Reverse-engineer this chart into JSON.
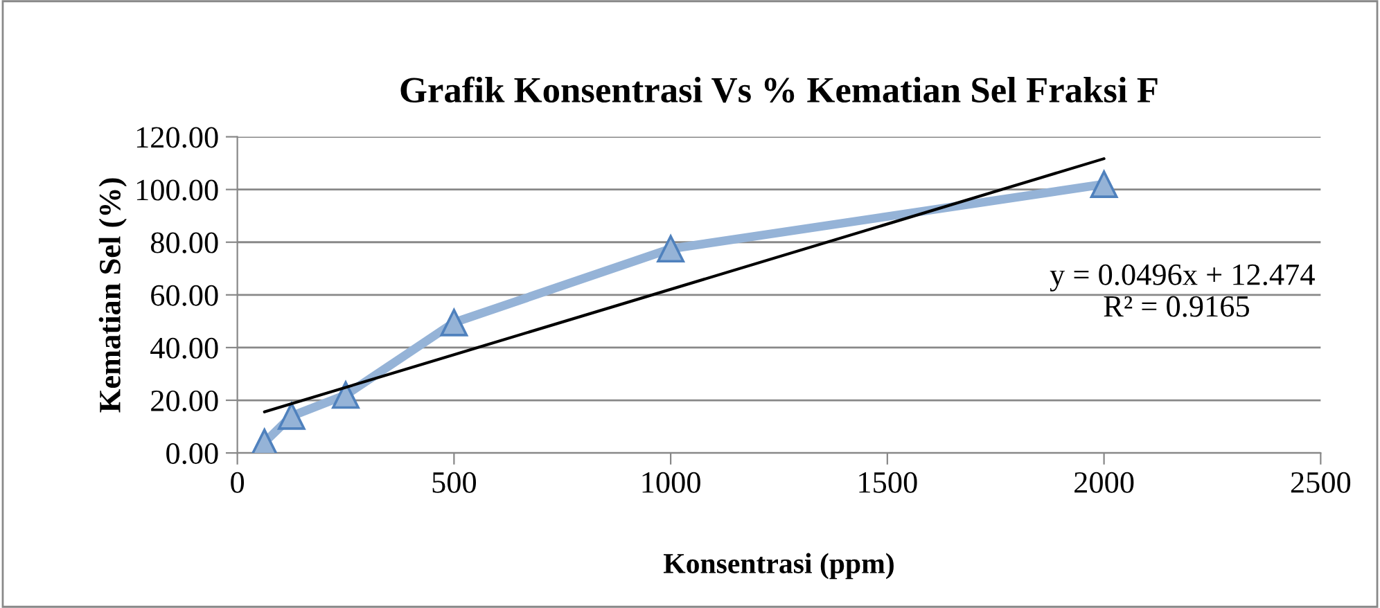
{
  "chart_data": {
    "type": "line",
    "title": "Grafik Konsentrasi Vs % Kematian Sel Fraksi F",
    "xlabel": "Konsentrasi (ppm)",
    "ylabel": "Kematian Sel (%)",
    "x": [
      62.5,
      125,
      250,
      500,
      1000,
      2000
    ],
    "series": [
      {
        "color": "#95b3d7",
        "marker": "triangle",
        "values": [
          4,
          14,
          22,
          49.5,
          77.5,
          102
        ]
      },
      {
        "type": "line",
        "color": "#000000",
        "marker": "none",
        "x": [
          62.5,
          2000
        ],
        "values": [
          15.6,
          111.7
        ]
      }
    ],
    "xlim": [
      0,
      2500
    ],
    "xticks": [
      0,
      500,
      1000,
      1500,
      2000,
      2500
    ],
    "ylim": [
      0,
      120
    ],
    "yticks": [
      {
        "value": 0,
        "label": "0.00"
      },
      {
        "value": 20,
        "label": "20.00"
      },
      {
        "value": 40,
        "label": "40.00"
      },
      {
        "value": 60,
        "label": "60.00"
      },
      {
        "value": 80,
        "label": "80.00"
      },
      {
        "value": 100,
        "label": "100.00"
      },
      {
        "value": 120,
        "label": "120.00"
      }
    ],
    "grid": "y",
    "legend": false,
    "annotations": [
      "y = 0.0496x + 12.474",
      "R² = 0.9165"
    ]
  }
}
